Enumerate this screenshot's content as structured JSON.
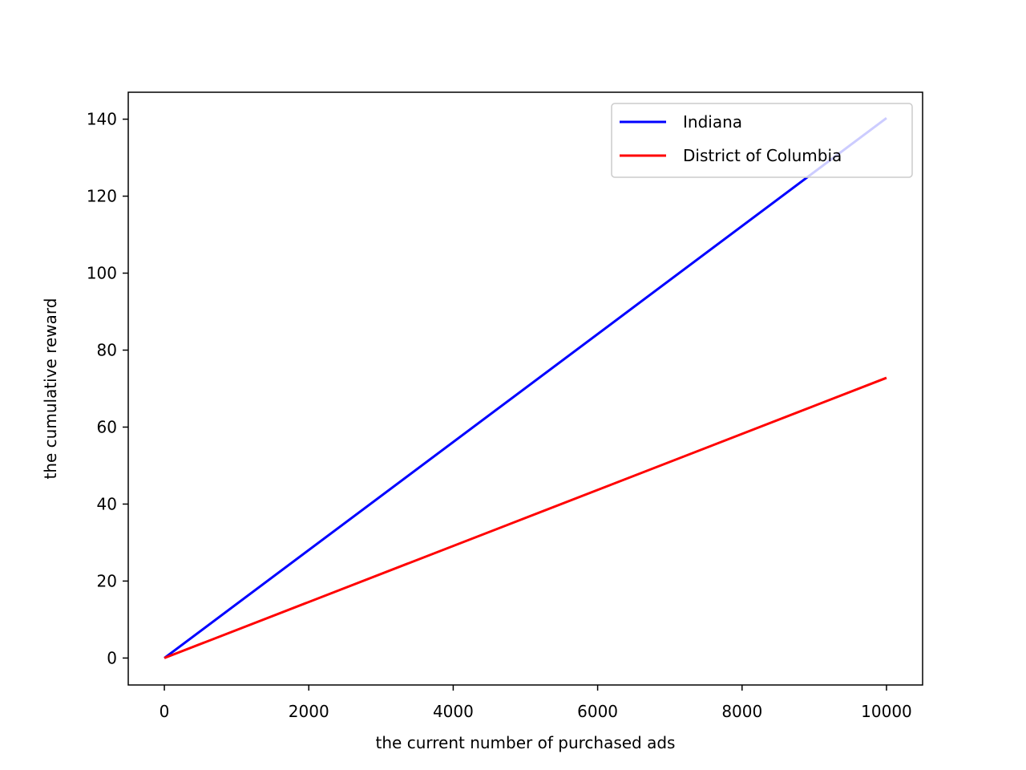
{
  "chart_data": {
    "type": "line",
    "title": "",
    "xlabel": "the current number of purchased ads",
    "ylabel": "the cumulative reward",
    "xlim": [
      -500,
      10500
    ],
    "ylim": [
      -7,
      147
    ],
    "xticks": [
      0,
      2000,
      4000,
      6000,
      8000,
      10000
    ],
    "yticks": [
      0,
      20,
      40,
      60,
      80,
      100,
      120,
      140
    ],
    "grid": false,
    "legend_position": "top-right",
    "series": [
      {
        "name": "Indiana",
        "color": "#0000ff",
        "x": [
          0,
          10000
        ],
        "y": [
          0,
          140.3
        ]
      },
      {
        "name": "District of Columbia",
        "color": "#ff0000",
        "x": [
          0,
          10000
        ],
        "y": [
          0,
          72.8
        ]
      }
    ]
  }
}
